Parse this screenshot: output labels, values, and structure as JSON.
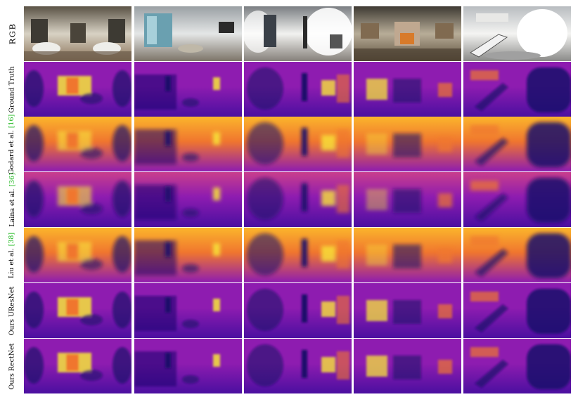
{
  "figure": {
    "rows": [
      {
        "id": "rgb",
        "label": "RGB",
        "citation": ""
      },
      {
        "id": "gt",
        "label": "Ground Truth",
        "citation": ""
      },
      {
        "id": "godard",
        "label": "Godard et al.",
        "citation": "[16]"
      },
      {
        "id": "laina",
        "label": "Laina et al.",
        "citation": "[36]"
      },
      {
        "id": "liu",
        "label": "Liu et al.",
        "citation": "[38]"
      },
      {
        "id": "uresnet",
        "label": "Ours UResNet",
        "citation": ""
      },
      {
        "id": "rectnet",
        "label": "Ours RectNet",
        "citation": ""
      }
    ],
    "columns": [
      {
        "scene": "bathroom",
        "feature": "center"
      },
      {
        "scene": "living-room-windows",
        "feature": "door"
      },
      {
        "scene": "hallway-door",
        "feature": "door"
      },
      {
        "scene": "fireplace-room",
        "feature": "fireplace"
      },
      {
        "scene": "staircase",
        "feature": "stairs"
      }
    ],
    "colormap": [
      "#1a0b6b",
      "#4b0fa0",
      "#8e1cb0",
      "#c93e8c",
      "#f0762e",
      "#fbb52c",
      "#f7e53a"
    ]
  }
}
